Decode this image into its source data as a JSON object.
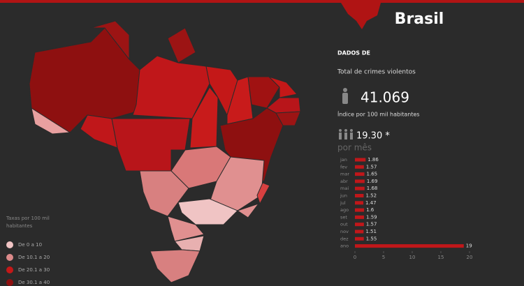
{
  "header": {
    "title": "Brasil",
    "section": "DADOS DE",
    "total_label": "Total de crimes violentos",
    "total_value": "41.069",
    "index_label": "Índice por 100 mil habitantes",
    "index_value": "19.30 *",
    "per_month": "por mês"
  },
  "legend": {
    "title": "Taxas por 100 mil habitantes",
    "items": [
      {
        "label": "De 0 a 10",
        "color": "#f0c4c4"
      },
      {
        "label": "De 10.1 a 20",
        "color": "#dc8a8a"
      },
      {
        "label": "De 20.1 a 30",
        "color": "#c41818"
      },
      {
        "label": "De 30.1 a 40",
        "color": "#8e1010"
      }
    ]
  },
  "chart_data": {
    "type": "bar",
    "orientation": "horizontal",
    "categories": [
      "jan",
      "fev",
      "mar",
      "abr",
      "mai",
      "jun",
      "jul",
      "ago",
      "set",
      "out",
      "nov",
      "dez",
      "ano"
    ],
    "values": [
      1.86,
      1.57,
      1.65,
      1.69,
      1.68,
      1.52,
      1.47,
      1.6,
      1.59,
      1.57,
      1.51,
      1.55,
      19
    ],
    "color": "#c0171a",
    "xlim": [
      0,
      20
    ],
    "xticks": [
      0,
      5,
      10,
      15,
      20
    ]
  }
}
